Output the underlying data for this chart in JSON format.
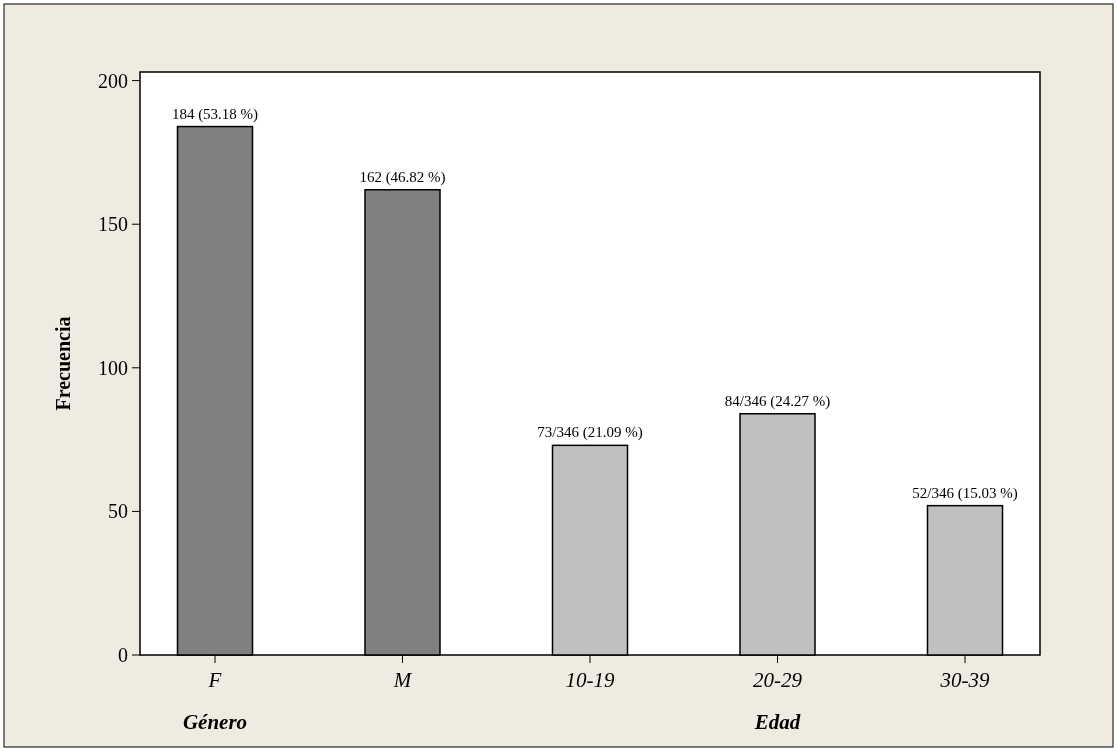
{
  "chart_data": {
    "type": "bar",
    "ylabel": "Frecuencia",
    "categories": [
      "F",
      "M",
      "10-19",
      "20-29",
      "30-39"
    ],
    "values": [
      184,
      162,
      73,
      84,
      52
    ],
    "colors": [
      "#808080",
      "#808080",
      "#c0c0c0",
      "#c0c0c0",
      "#c0c0c0"
    ],
    "value_labels": [
      "184 (53.18 %)",
      "162 (46.82 %)",
      "73/346 (21.09 %)",
      "84/346 (24.27 %)",
      "52/346 (15.03 %)"
    ],
    "ylim": [
      0,
      203
    ],
    "yticks": [
      0,
      50,
      100,
      150,
      200
    ],
    "annotations": [
      "Género",
      "Edad"
    ]
  }
}
